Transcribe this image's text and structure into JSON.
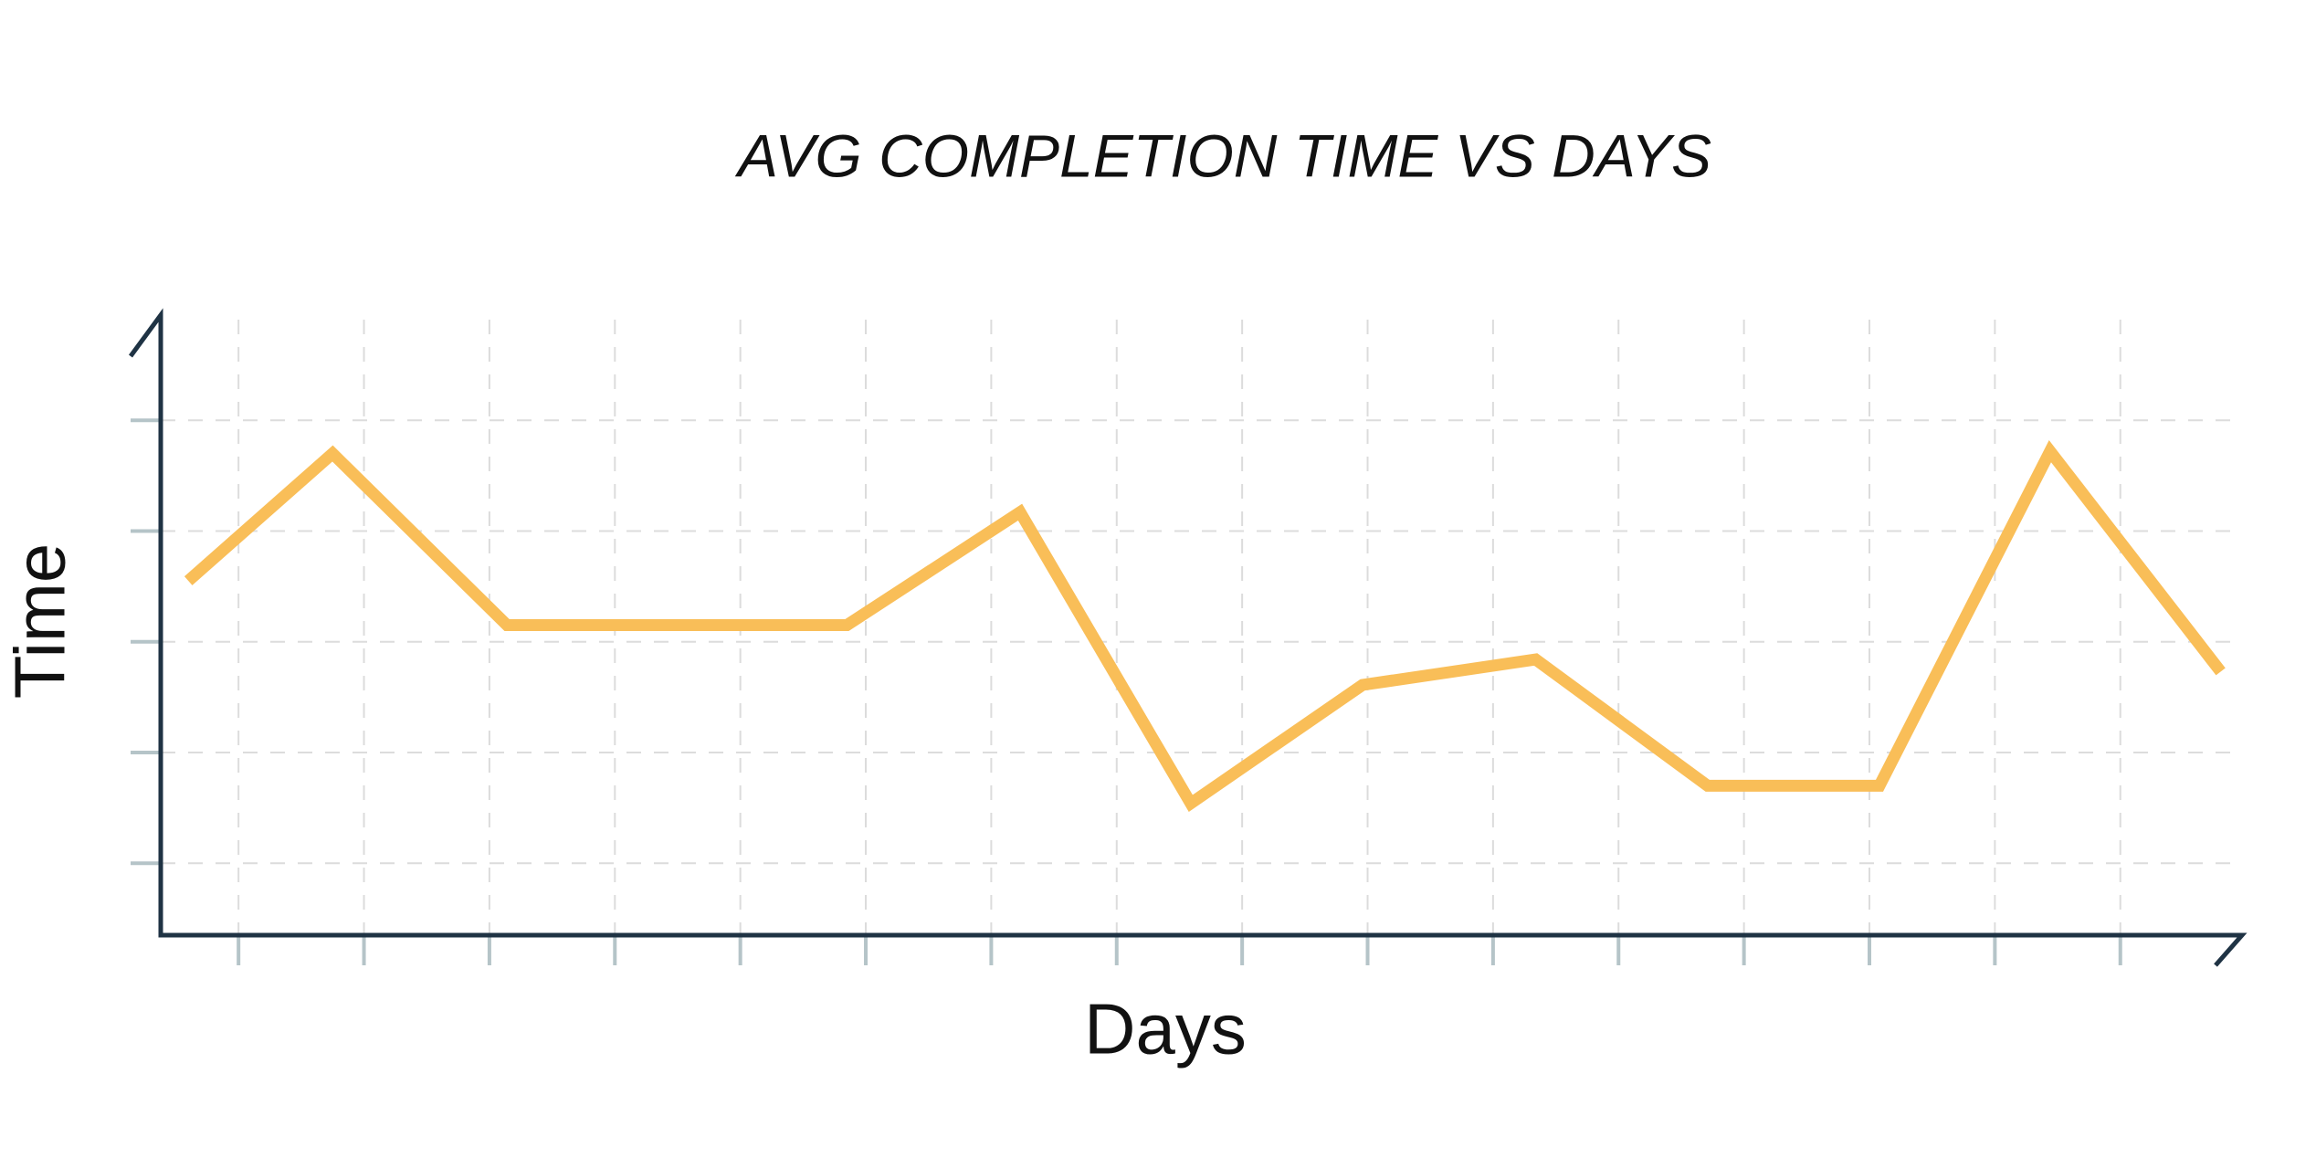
{
  "chart_data": {
    "type": "line",
    "title": "AVG COMPLETION TIME VS DAYS",
    "x_label": "Days",
    "y_label": "Time",
    "x": [
      0.6,
      1.75,
      3.14,
      5.85,
      7.23,
      8.59,
      9.96,
      11.34,
      12.71,
      14.08,
      15.44,
      16.8
    ],
    "series": [
      {
        "name": "Time",
        "color": "#f9be58",
        "values": [
          2.55,
          3.7,
          2.15,
          2.15,
          3.17,
          0.54,
          1.61,
          1.84,
          0.7,
          0.7,
          3.72,
          1.73
        ]
      }
    ],
    "xlim": [
      0.38,
      16.97
    ],
    "xticks": [
      1,
      2,
      3,
      4,
      5,
      6,
      7,
      8,
      9,
      10,
      11,
      12,
      13,
      14,
      15,
      16
    ],
    "ylim": [
      -0.65,
      4.95
    ],
    "yticks": [
      0,
      1,
      2,
      3,
      4
    ],
    "grid": true,
    "legend": false
  }
}
